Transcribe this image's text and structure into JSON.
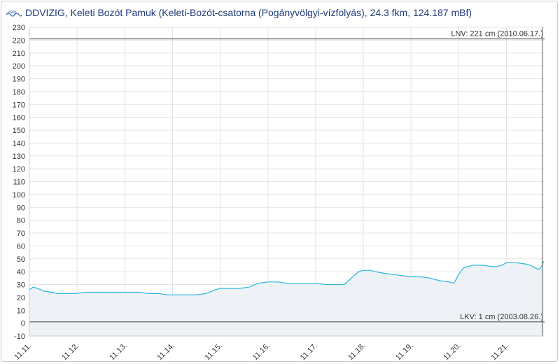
{
  "header": {
    "title": "DDVIZIG, Keleti Bozót Pamuk (Keleti-Bozót-csatorna (Pogányvölgyi-vízfolyás), 24.3 fkm, 124.187 mBf)",
    "logo_text": "vizig"
  },
  "colors": {
    "series": "#29b6e0",
    "area": "#eef1f6",
    "grid": "#e3e3e3",
    "ref_line": "#555555"
  },
  "chart_data": {
    "type": "area",
    "title": "DDVIZIG, Keleti Bozót Pamuk (Keleti-Bozót-csatorna (Pogányvölgyi-vízfolyás), 24.3 fkm, 124.187 mBf)",
    "xlabel": "",
    "ylabel": "",
    "ylim": [
      -10,
      230
    ],
    "ytick_step": 10,
    "x_tick_labels": [
      "11.11.",
      "11.12.",
      "11.13.",
      "11.14.",
      "11.15.",
      "11.16.",
      "11.17.",
      "11.18.",
      "11.19.",
      "11.20.",
      "11.21."
    ],
    "x_unit": "days from 11.11.",
    "xlim": [
      0,
      10.8
    ],
    "grid": true,
    "series": [
      {
        "name": "",
        "x": [
          0,
          0.08,
          0.17,
          0.3,
          0.45,
          0.6,
          0.75,
          0.85,
          0.95,
          1.2,
          1.5,
          1.8,
          2.1,
          2.3,
          2.5,
          2.7,
          2.9,
          3.0,
          3.1,
          3.2,
          3.35,
          3.5,
          3.7,
          3.9,
          4.0,
          4.1,
          4.2,
          4.4,
          4.6,
          4.8,
          5.0,
          5.1,
          5.2,
          5.4,
          5.6,
          5.7,
          5.8,
          5.9,
          6.0,
          6.2,
          6.4,
          6.6,
          6.9,
          7.0,
          7.05,
          7.1,
          7.15,
          7.25,
          7.4,
          7.6,
          7.8,
          8.0,
          8.2,
          8.4,
          8.6,
          8.8,
          8.9,
          9.0,
          9.1,
          9.3,
          9.5,
          9.7,
          9.8,
          9.9,
          10.0,
          10.2,
          10.4,
          10.5,
          10.6,
          10.65,
          10.7,
          10.73,
          10.78
        ],
        "values": [
          26,
          28,
          27,
          25,
          24,
          23,
          23,
          23,
          23,
          24,
          24,
          24,
          24,
          24,
          23,
          23,
          22,
          22,
          22,
          22,
          22,
          22,
          23,
          26,
          27,
          27,
          27,
          27,
          28,
          31,
          32,
          32,
          32,
          31,
          31,
          31,
          31,
          31,
          31,
          30,
          30,
          30,
          40,
          41,
          41,
          41,
          41,
          40,
          39,
          38,
          37,
          36,
          36,
          35,
          33,
          32,
          31,
          38,
          43,
          45,
          45,
          44,
          44,
          45,
          47,
          47,
          46,
          45,
          43,
          42,
          42,
          44,
          48
        ]
      }
    ],
    "reference_lines": [
      {
        "value": 221,
        "label": "LNV: 221 cm (2010.06.17.)"
      },
      {
        "value": 1,
        "label": "LKV: 1 cm (2003.08.26.)"
      }
    ]
  }
}
